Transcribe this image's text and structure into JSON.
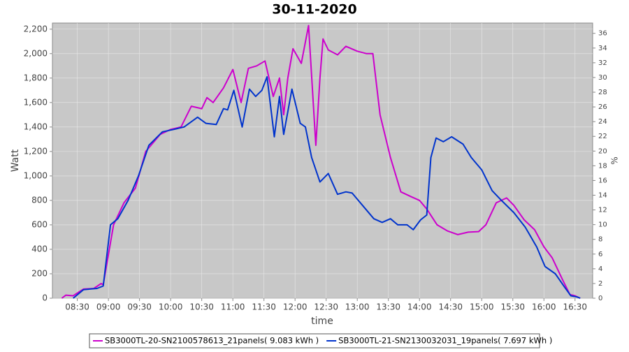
{
  "chart_data": {
    "type": "line",
    "title": "30-11-2020",
    "x_label": "time",
    "y_label": "Watt",
    "y2_label": "%",
    "xlim": [
      "08:06",
      "16:47"
    ],
    "xticks": [
      "08:30",
      "09:00",
      "09:30",
      "10:00",
      "10:30",
      "11:00",
      "11:30",
      "12:00",
      "12:30",
      "13:00",
      "13:30",
      "14:00",
      "14:30",
      "15:00",
      "15:30",
      "16:00",
      "16:30"
    ],
    "ylim": [
      0,
      2250
    ],
    "yticks": [
      0,
      200,
      400,
      600,
      800,
      {
        "value": 1000,
        "label": "1,000"
      },
      {
        "value": 1200,
        "label": "1,200"
      },
      {
        "value": 1400,
        "label": "1,400"
      },
      {
        "value": 1600,
        "label": "1,600"
      },
      {
        "value": 1800,
        "label": "1,800"
      },
      {
        "value": 2000,
        "label": "2,000"
      },
      {
        "value": 2200,
        "label": "2,200"
      }
    ],
    "y2lim": [
      0,
      37.4
    ],
    "y2ticks": [
      0,
      2,
      4,
      6,
      8,
      10,
      12,
      14,
      16,
      18,
      20,
      22,
      24,
      26,
      28,
      30,
      32,
      34,
      36
    ],
    "grid": true,
    "series": [
      {
        "name": "SB3000TL-20-SN2100578613_21panels( 9.083 kWh )",
        "color": "#cc00cc",
        "x": [
          "08:15",
          "08:19",
          "08:26",
          "08:36",
          "08:46",
          "08:53",
          "08:55",
          "09:05",
          "09:15",
          "09:26",
          "09:36",
          "09:50",
          "10:00",
          "10:10",
          "10:20",
          "10:30",
          "10:35",
          "10:41",
          "10:51",
          "11:00",
          "11:08",
          "11:15",
          "11:23",
          "11:31",
          "11:39",
          "11:45",
          "11:49",
          "11:53",
          "11:58",
          "12:06",
          "12:13",
          "12:20",
          "12:24",
          "12:27",
          "12:32",
          "12:41",
          "12:49",
          "13:00",
          "13:09",
          "13:15",
          "13:22",
          "13:32",
          "13:42",
          "13:52",
          "14:00",
          "14:07",
          "14:17",
          "14:27",
          "14:37",
          "14:47",
          "14:57",
          "15:04",
          "15:14",
          "15:24",
          "15:31",
          "15:41",
          "15:51",
          "16:00",
          "16:08",
          "16:18",
          "16:25",
          "16:30",
          "16:35"
        ],
        "values": [
          0,
          25,
          20,
          75,
          80,
          120,
          110,
          600,
          780,
          900,
          1200,
          1340,
          1380,
          1400,
          1570,
          1550,
          1640,
          1600,
          1720,
          1870,
          1600,
          1880,
          1900,
          1940,
          1650,
          1800,
          1500,
          1800,
          2040,
          1920,
          2230,
          1250,
          1800,
          2120,
          2030,
          1990,
          2060,
          2020,
          2000,
          2000,
          1500,
          1150,
          870,
          830,
          800,
          730,
          600,
          550,
          520,
          540,
          545,
          600,
          780,
          820,
          760,
          640,
          560,
          420,
          330,
          150,
          30,
          20,
          0
        ]
      },
      {
        "name": "SB3000TL-21-SN2130032031_19panels( 7.697 kWh )",
        "color": "#0033cc",
        "x": [
          "08:26",
          "08:36",
          "08:49",
          "08:55",
          "09:02",
          "09:09",
          "09:19",
          "09:29",
          "09:39",
          "09:52",
          "10:03",
          "10:13",
          "10:26",
          "10:34",
          "10:44",
          "10:51",
          "10:55",
          "11:01",
          "11:09",
          "11:16",
          "11:22",
          "11:28",
          "11:33",
          "11:40",
          "11:45",
          "11:49",
          "11:57",
          "12:05",
          "12:10",
          "12:16",
          "12:24",
          "12:32",
          "12:41",
          "12:49",
          "12:55",
          "13:06",
          "13:16",
          "13:24",
          "13:32",
          "13:39",
          "13:48",
          "13:54",
          "14:01",
          "14:07",
          "14:11",
          "14:16",
          "14:23",
          "14:31",
          "14:42",
          "14:50",
          "15:00",
          "15:10",
          "15:19",
          "15:31",
          "15:42",
          "15:53",
          "16:01",
          "16:11",
          "16:20",
          "16:26",
          "16:32",
          "16:35"
        ],
        "values": [
          0,
          70,
          80,
          100,
          600,
          650,
          800,
          1000,
          1250,
          1360,
          1380,
          1400,
          1480,
          1430,
          1420,
          1550,
          1540,
          1700,
          1400,
          1710,
          1650,
          1700,
          1810,
          1320,
          1650,
          1340,
          1710,
          1430,
          1400,
          1150,
          950,
          1020,
          850,
          870,
          860,
          750,
          650,
          620,
          650,
          600,
          600,
          560,
          640,
          680,
          1150,
          1310,
          1280,
          1320,
          1260,
          1150,
          1050,
          880,
          800,
          700,
          580,
          420,
          260,
          200,
          90,
          20,
          10,
          0
        ]
      }
    ]
  }
}
